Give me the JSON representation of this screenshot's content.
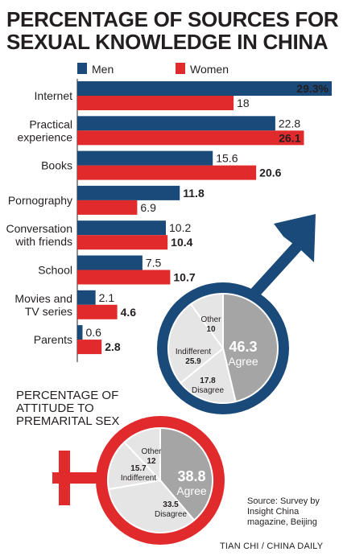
{
  "header": {
    "title_line1": "PERCENTAGE OF SOURCES FOR",
    "title_line2": "SEXUAL KNOWLEDGE IN CHINA"
  },
  "colors": {
    "men": "#1a4a7a",
    "women": "#e02a2c",
    "agree": "#a6a5a5",
    "other_slices": "#e6e5e5",
    "text": "#231f20"
  },
  "chart_data": [
    {
      "type": "bar",
      "orientation": "horizontal",
      "title": "PERCENTAGE OF SOURCES FOR SEXUAL KNOWLEDGE IN CHINA",
      "legend_position": "top",
      "categories": [
        [
          "Internet"
        ],
        [
          "Practical",
          "experience"
        ],
        [
          "Books"
        ],
        [
          "Pornography"
        ],
        [
          "Conversation",
          "with friends"
        ],
        [
          "School"
        ],
        [
          "Movies and",
          "TV series"
        ],
        [
          "Parents"
        ]
      ],
      "series": [
        {
          "name": "Men",
          "values": [
            29.3,
            22.8,
            15.6,
            11.8,
            10.2,
            7.5,
            2.1,
            0.6
          ],
          "labels": [
            "29.3%",
            "22.8",
            "15.6",
            "11.8",
            "10.2",
            "7.5",
            "2.1",
            "0.6"
          ],
          "bold": [
            true,
            false,
            false,
            true,
            false,
            false,
            false,
            false
          ]
        },
        {
          "name": "Women",
          "values": [
            18,
            26.1,
            20.6,
            6.9,
            10.4,
            10.7,
            4.6,
            2.8
          ],
          "labels": [
            "18",
            "26.1",
            "20.6",
            "6.9",
            "10.4",
            "10.7",
            "4.6",
            "2.8"
          ],
          "bold": [
            false,
            true,
            true,
            false,
            true,
            true,
            true,
            true
          ]
        }
      ],
      "xlim": [
        0,
        29.3
      ]
    },
    {
      "type": "pie",
      "title": "PERCENTAGE OF ATTITUDE TO PREMARITAL SEX",
      "group": "Men",
      "slices": [
        {
          "name": "Agree",
          "value": 46.3
        },
        {
          "name": "Disagree",
          "value": 17.8
        },
        {
          "name": "Indifferent",
          "value": 25.9
        },
        {
          "name": "Other",
          "value": 10
        }
      ]
    },
    {
      "type": "pie",
      "title": "PERCENTAGE OF ATTITUDE TO PREMARITAL SEX",
      "group": "Women",
      "slices": [
        {
          "name": "Agree",
          "value": 38.8
        },
        {
          "name": "Disagree",
          "value": 33.5
        },
        {
          "name": "Indifferent",
          "value": 15.7
        },
        {
          "name": "Other",
          "value": 12
        }
      ]
    }
  ],
  "attitude_title": [
    "PERCENTAGE OF",
    "ATTITUDE TO",
    "PREMARITAL SEX"
  ],
  "source": [
    "Source: Survey by",
    "Insight China",
    "magazine, Beijing"
  ],
  "credit": "TIAN CHI / CHINA DAILY"
}
